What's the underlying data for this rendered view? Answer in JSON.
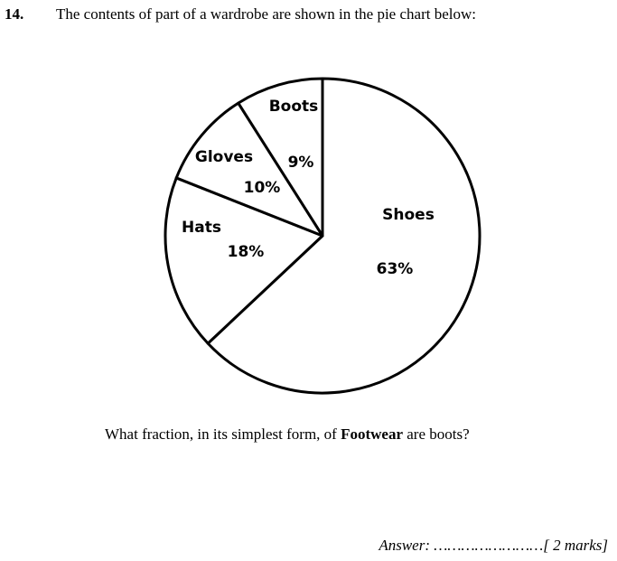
{
  "question": {
    "number": "14.",
    "intro": "The contents of part of a wardrobe are shown in the pie chart below:",
    "prompt_before": "What fraction, in its simplest form, of ",
    "prompt_bold": "Footwear",
    "prompt_after": " are boots?",
    "answer_label": "Answer:",
    "answer_dots": " ……………………",
    "marks": "[ 2 marks]"
  },
  "chart_data": {
    "type": "pie",
    "title": "",
    "start": "top, clockwise",
    "slices": [
      {
        "label": "Shoes",
        "value": 63,
        "value_label": "63%"
      },
      {
        "label": "Hats",
        "value": 18,
        "value_label": "18%"
      },
      {
        "label": "Gloves",
        "value": 10,
        "value_label": "10%"
      },
      {
        "label": "Boots",
        "value": 9,
        "value_label": "9%"
      }
    ],
    "colors": {
      "fill": "#ffffff",
      "stroke": "#000000"
    }
  }
}
